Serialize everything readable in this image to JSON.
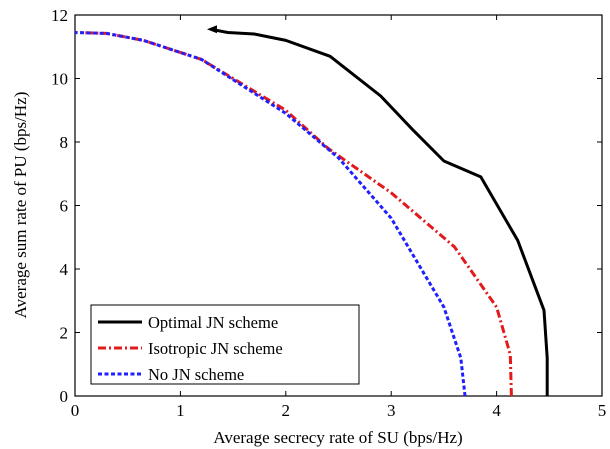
{
  "chart_data": {
    "type": "line",
    "xlabel": "Average secrecy rate of SU (bps/Hz)",
    "ylabel": "Average sum rate of PU (bps/Hz)",
    "xlim": [
      0,
      5
    ],
    "ylim": [
      0,
      12
    ],
    "xticks": [
      "0",
      "1",
      "2",
      "3",
      "4",
      "5"
    ],
    "yticks": [
      "0",
      "2",
      "4",
      "6",
      "8",
      "10",
      "12"
    ],
    "grid": false,
    "legend_position": "bottom-left",
    "series": [
      {
        "name": "Optimal JN scheme",
        "color": "#000000",
        "style": "solid",
        "points": [
          [
            4.48,
            0
          ],
          [
            4.48,
            1.2
          ],
          [
            4.45,
            2.7
          ],
          [
            4.2,
            4.9
          ],
          [
            3.85,
            6.9
          ],
          [
            3.5,
            7.4
          ],
          [
            3.2,
            8.4
          ],
          [
            2.9,
            9.45
          ],
          [
            2.42,
            10.7
          ],
          [
            2.0,
            11.2
          ],
          [
            1.7,
            11.4
          ],
          [
            1.45,
            11.45
          ],
          [
            1.29,
            11.55
          ]
        ]
      },
      {
        "name": "Isotropic JN scheme",
        "color": "#e31a1c",
        "style": "dashdot",
        "points": [
          [
            4.14,
            0
          ],
          [
            4.13,
            1.3
          ],
          [
            4.0,
            2.8
          ],
          [
            3.6,
            4.7
          ],
          [
            3.0,
            6.4
          ],
          [
            2.4,
            7.8
          ],
          [
            2.0,
            9.0
          ],
          [
            1.2,
            10.6
          ],
          [
            0.65,
            11.2
          ],
          [
            0.3,
            11.42
          ],
          [
            0.0,
            11.45
          ]
        ]
      },
      {
        "name": "No JN scheme",
        "color": "#1f1fff",
        "style": "dotted",
        "points": [
          [
            3.7,
            0
          ],
          [
            3.66,
            1.2
          ],
          [
            3.5,
            2.8
          ],
          [
            3.0,
            5.6
          ],
          [
            2.5,
            7.5
          ],
          [
            2.0,
            8.9
          ],
          [
            1.2,
            10.6
          ],
          [
            0.65,
            11.2
          ],
          [
            0.3,
            11.42
          ],
          [
            0.0,
            11.45
          ]
        ]
      }
    ]
  }
}
